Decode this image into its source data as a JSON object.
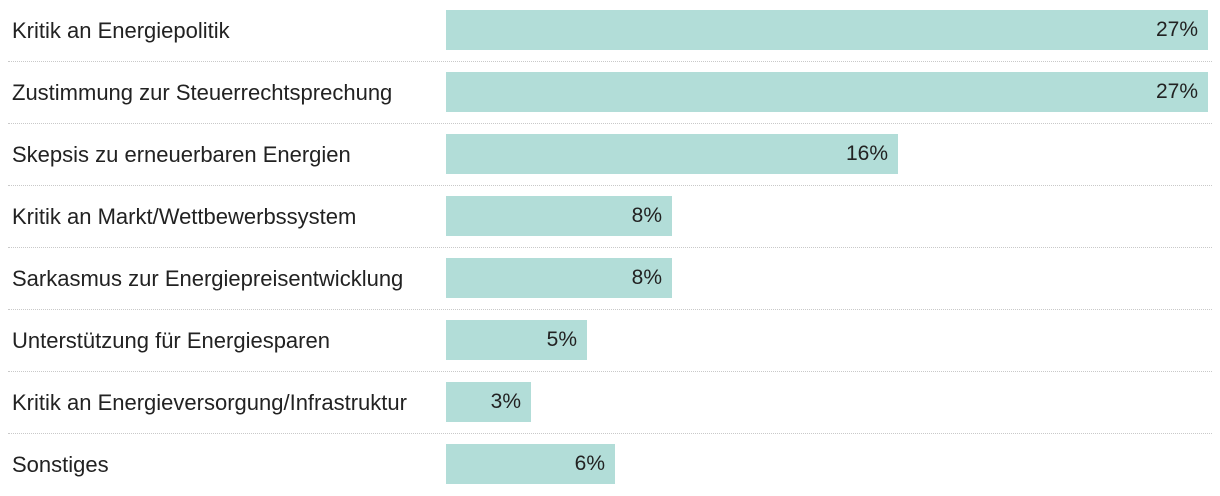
{
  "chart_data": {
    "type": "bar",
    "orientation": "horizontal",
    "categories": [
      "Kritik an Energiepolitik",
      "Zustimmung zur Steuerrechtsprechung",
      "Skepsis zu erneuerbaren Energien",
      "Kritik an Markt/Wettbewerbssystem",
      "Sarkasmus zur Energiepreisentwicklung",
      "Unterstützung für Energiesparen",
      "Kritik an Energieversorgung/Infrastruktur",
      "Sonstiges"
    ],
    "values": [
      27,
      27,
      16,
      8,
      8,
      5,
      3,
      6
    ],
    "value_labels": [
      "27%",
      "27%",
      "16%",
      "8%",
      "8%",
      "5%",
      "3%",
      "6%"
    ],
    "unit": "%",
    "xlim": [
      0,
      27
    ],
    "bar_color": "#b2ddd8",
    "grid": false,
    "legend": "none",
    "title": "",
    "xlabel": "",
    "ylabel": ""
  }
}
